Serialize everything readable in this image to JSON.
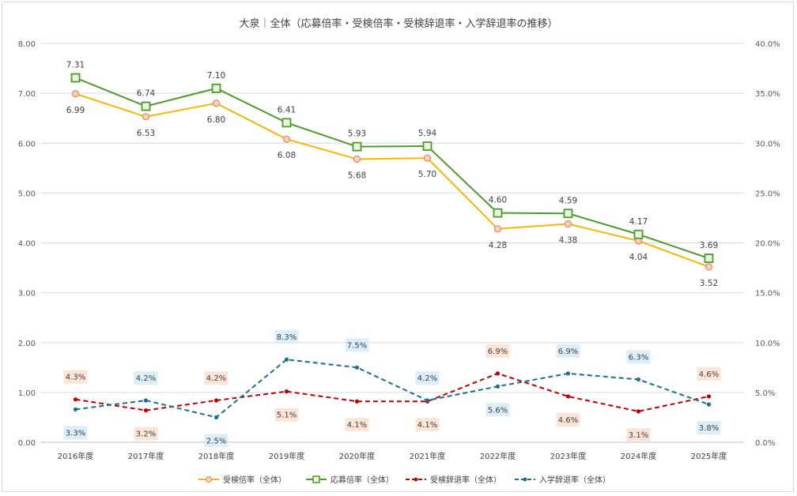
{
  "chart_data": {
    "type": "line",
    "title": "大泉｜全体（応募倍率・受検倍率・受検辞退率・入学辞退率の推移）",
    "categories": [
      "2016年度",
      "2017年度",
      "2018年度",
      "2019年度",
      "2020年度",
      "2021年度",
      "2022年度",
      "2023年度",
      "2024年度",
      "2025年度"
    ],
    "left_axis": {
      "ylim": [
        0,
        8
      ],
      "ticks": [
        "0.00",
        "1.00",
        "2.00",
        "3.00",
        "4.00",
        "5.00",
        "6.00",
        "7.00",
        "8.00"
      ]
    },
    "right_axis": {
      "ylim": [
        0,
        40
      ],
      "ticks": [
        "0.0%",
        "5.0%",
        "10.0%",
        "15.0%",
        "20.0%",
        "25.0%",
        "30.0%",
        "35.0%",
        "40.0%"
      ]
    },
    "grid": true,
    "legend_position": "bottom",
    "series": [
      {
        "name": "受検倍率（全体）",
        "axis": "left",
        "color": "#f5b800",
        "style": "solid-circle",
        "values": [
          6.99,
          6.53,
          6.8,
          6.08,
          5.68,
          5.7,
          4.28,
          4.38,
          4.04,
          3.52
        ],
        "labels": [
          "6.99",
          "6.53",
          "6.80",
          "6.08",
          "5.68",
          "5.70",
          "4.28",
          "4.38",
          "4.04",
          "3.52"
        ]
      },
      {
        "name": "応募倍率（全体）",
        "axis": "left",
        "color": "#4e9a2a",
        "style": "solid-square",
        "values": [
          7.31,
          6.74,
          7.1,
          6.41,
          5.93,
          5.94,
          4.6,
          4.59,
          4.17,
          3.69
        ],
        "labels": [
          "7.31",
          "6.74",
          "7.10",
          "6.41",
          "5.93",
          "5.94",
          "4.60",
          "4.59",
          "4.17",
          "3.69"
        ]
      },
      {
        "name": "受検辞退率（全体）",
        "axis": "right",
        "color": "#c00000",
        "style": "dashed-dot",
        "values": [
          4.3,
          3.2,
          4.2,
          5.1,
          4.1,
          4.1,
          6.9,
          4.6,
          3.1,
          4.6
        ],
        "labels": [
          "4.3%",
          "3.2%",
          "4.2%",
          "5.1%",
          "4.1%",
          "4.1%",
          "6.9%",
          "4.6%",
          "3.1%",
          "4.6%"
        ]
      },
      {
        "name": "入学辞退率（全体）",
        "axis": "right",
        "color": "#1a6e8f",
        "style": "dashed-dot",
        "values": [
          3.3,
          4.2,
          2.5,
          8.3,
          7.5,
          4.2,
          5.6,
          6.9,
          6.3,
          3.8
        ],
        "labels": [
          "3.3%",
          "4.2%",
          "2.5%",
          "8.3%",
          "7.5%",
          "4.2%",
          "5.6%",
          "6.9%",
          "6.3%",
          "3.8%"
        ]
      }
    ]
  }
}
